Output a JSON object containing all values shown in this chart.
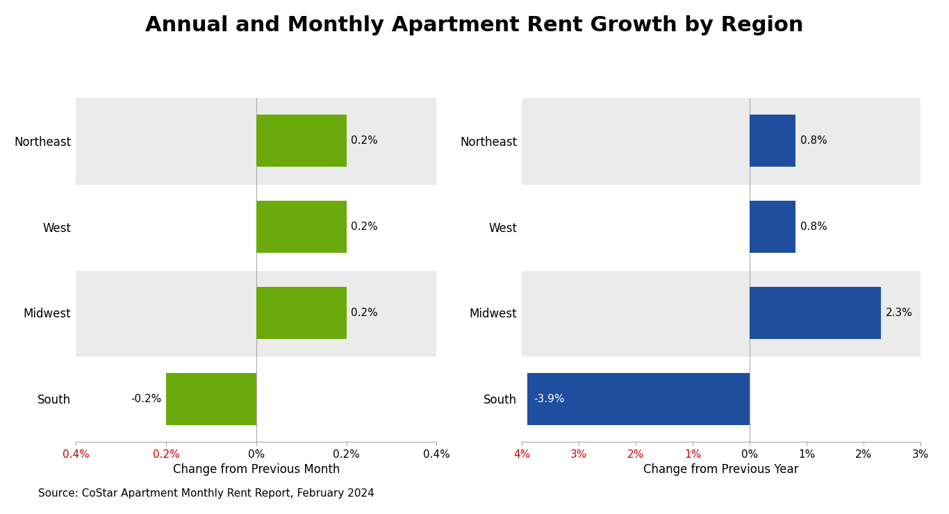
{
  "title": "Annual and Monthly Apartment Rent Growth by Region",
  "source": "Source: CoStar Apartment Monthly Rent Report, February 2024",
  "regions": [
    "South",
    "Midwest",
    "West",
    "Northeast"
  ],
  "monthly_values": [
    -0.2,
    0.2,
    0.2,
    0.2
  ],
  "annual_values": [
    -3.9,
    2.3,
    0.8,
    0.8
  ],
  "monthly_bar_color": "#6aaa0a",
  "annual_bar_color": "#1f4e9e",
  "monthly_xlabel": "Change from Previous Month",
  "annual_xlabel": "Change from Previous Year",
  "monthly_xlim": [
    -0.4,
    0.4
  ],
  "annual_xlim": [
    -4.0,
    3.0
  ],
  "monthly_xticks": [
    -0.4,
    -0.2,
    0.0,
    0.2,
    0.4
  ],
  "annual_xticks": [
    -4,
    -3,
    -2,
    -1,
    0,
    1,
    2,
    3
  ],
  "negative_tick_color": "#cc0000",
  "row_colors": [
    "#ffffff",
    "#ebebeb",
    "#ffffff",
    "#ebebeb"
  ],
  "figure_background": "#ffffff",
  "title_fontsize": 22,
  "label_fontsize": 12,
  "tick_fontsize": 11,
  "source_fontsize": 11,
  "bar_label_fontsize": 11
}
